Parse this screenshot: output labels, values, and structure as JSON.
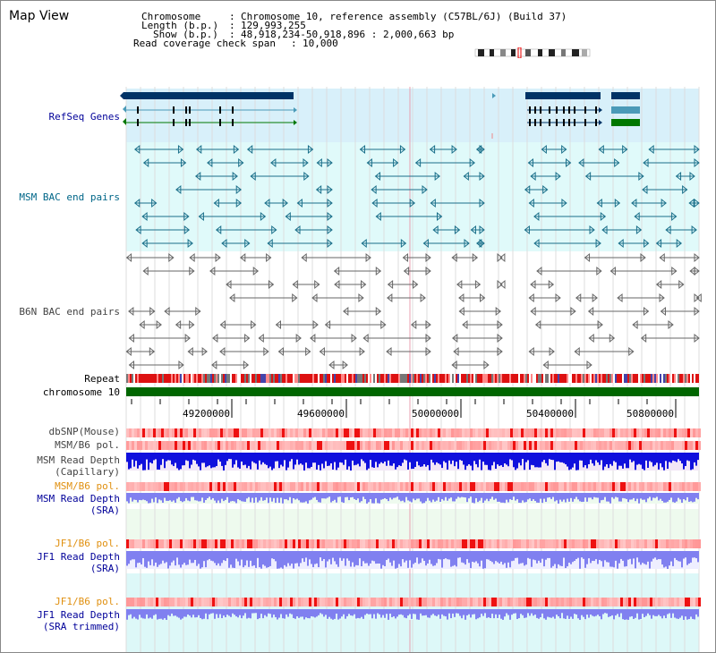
{
  "title": "Map View",
  "info": {
    "chromosome_key": "Chromosome",
    "chromosome_val": "Chromosome 10, reference assembly (C57BL/6J) (Build 37)",
    "length_key": "Length (b.p.)",
    "length_val": "129,993,255",
    "show_key": "Show (b.p.)",
    "show_val": "48,918,234-50,918,896 : 2,000,663 bp",
    "coverage_key": "Read coverage check span",
    "coverage_val": "10,000"
  },
  "tracks": {
    "refseq": "RefSeq Genes",
    "msm_bac": "MSM BAC end pairs",
    "b6n_bac": "B6N BAC end pairs",
    "repeat": "Repeat",
    "chromosome": "chromosome 10",
    "dbsnp": "dbSNP(Mouse)",
    "msm_b6_pol": "MSM/B6 pol.",
    "msm_depth_cap_1": "MSM Read Depth",
    "msm_depth_cap_2": "(Capillary)",
    "msm_b6_pol2": "MSM/B6 pol.",
    "msm_depth_sra_1": "MSM Read Depth",
    "msm_depth_sra_2": "(SRA)",
    "jf1_b6_pol": "JF1/B6 pol.",
    "jf1_depth_sra_1": "JF1 Read Depth",
    "jf1_depth_sra_2": "(SRA)",
    "jf1_b6_pol2": "JF1/B6 pol.",
    "jf1_depth_trim_1": "JF1 Read Depth",
    "jf1_depth_trim_2": "(SRA trimmed)"
  },
  "axis": {
    "ticks": [
      "49200000",
      "49600000",
      "50000000",
      "50400000",
      "50800000"
    ]
  },
  "colors": {
    "refseq_bg": "#d8f0fa",
    "msm_bg": "#e0fafa",
    "gene_navy": "#003366",
    "gene_teal": "#4a9ab8",
    "gene_green": "#007700",
    "msm_line": "#1a6f8a",
    "b6n_line": "#666666",
    "chrom_green": "#006600",
    "depth_blue": "#1010dd",
    "depth_light_blue": "#8080f0",
    "pol_red": "#ee2222",
    "sra_bg": "#eefaee",
    "jf1_bg": "#ddf8f8"
  }
}
